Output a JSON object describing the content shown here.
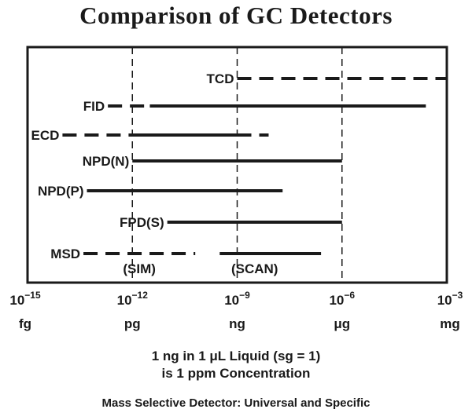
{
  "chart_data": {
    "type": "range",
    "title": "Comparison of GC Detectors",
    "x_scale": "log10",
    "xlim_exponent": [
      -15,
      -3
    ],
    "x_ticks": [
      {
        "base": "10",
        "exp": "−15",
        "unit": "fg",
        "value_exp": -15
      },
      {
        "base": "10",
        "exp": "−12",
        "unit": "pg",
        "value_exp": -12
      },
      {
        "base": "10",
        "exp": "−9",
        "unit": "ng",
        "value_exp": -9
      },
      {
        "base": "10",
        "exp": "−6",
        "unit": "μg",
        "value_exp": -6
      },
      {
        "base": "10",
        "exp": "−3",
        "unit": "mg",
        "value_exp": -3
      }
    ],
    "gridlines": "dashed at 10^-12, 10^-9, 10^-6",
    "detectors": [
      {
        "name": "TCD",
        "dashed": [
          -9.0,
          -3.0
        ],
        "solid": []
      },
      {
        "name": "FID",
        "dashed": [
          -12.7,
          -11.5
        ],
        "solid": [
          -11.5,
          -3.6
        ]
      },
      {
        "name": "ECD",
        "dashed": [
          -14.0,
          -12.0
        ],
        "solid": [
          -12.0,
          -9.0
        ],
        "dashed2": [
          -9.0,
          -8.1
        ]
      },
      {
        "name": "NPD(N)",
        "dashed": [],
        "solid": [
          -12.0,
          -6.0
        ]
      },
      {
        "name": "NPD(P)",
        "dashed": [],
        "solid": [
          -13.3,
          -7.7
        ]
      },
      {
        "name": "FPD(S)",
        "dashed": [],
        "solid": [
          -11.0,
          -6.0
        ]
      },
      {
        "name": "MSD",
        "dashed": [
          -13.4,
          -10.2
        ],
        "solid": [
          -9.5,
          -6.6
        ],
        "mode_labels": [
          "(SIM)",
          "(SCAN)"
        ]
      }
    ]
  },
  "notes": {
    "line1": "1 ng in 1 μL Liquid (sg = 1)",
    "line2": "is 1 ppm Concentration",
    "line3": "Mass Selective Detector:  Universal and Specific"
  }
}
